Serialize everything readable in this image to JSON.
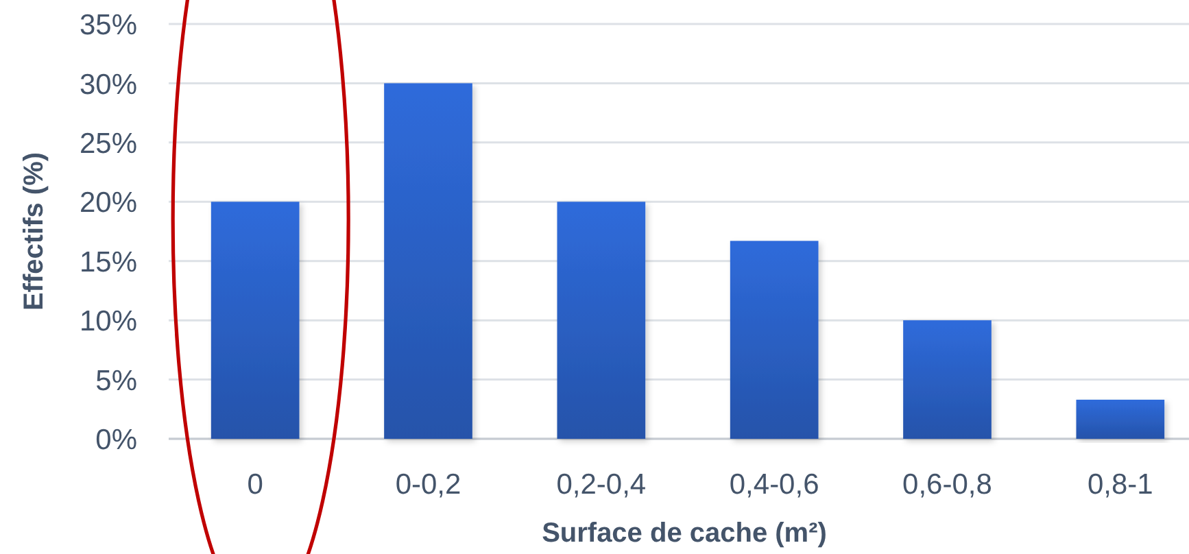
{
  "chart_data": {
    "type": "bar",
    "xlabel": "Surface de cache (m²)",
    "ylabel": "Effectifs (%)",
    "categories": [
      "0",
      "0-0,2",
      "0,2-0,4",
      "0,4-0,6",
      "0,6-0,8",
      "0,8-1"
    ],
    "values": [
      20,
      30,
      20,
      16.7,
      10,
      3.3
    ],
    "color": "#2b62c8",
    "ylim": [
      0,
      35
    ],
    "yticks": [
      {
        "value": 0,
        "label": "0%"
      },
      {
        "value": 5,
        "label": "5%"
      },
      {
        "value": 10,
        "label": "10%"
      },
      {
        "value": 15,
        "label": "15%"
      },
      {
        "value": 20,
        "label": "20%"
      },
      {
        "value": 25,
        "label": "25%"
      },
      {
        "value": 30,
        "label": "30%"
      },
      {
        "value": 35,
        "label": "35%"
      }
    ],
    "grid": "y"
  }
}
